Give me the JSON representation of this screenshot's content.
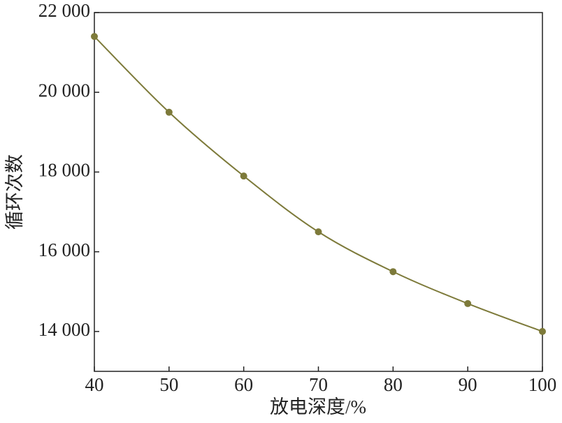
{
  "chart_data": {
    "type": "line",
    "x_label": "放电深度/%",
    "y_label": "循环次数",
    "x": [
      40,
      50,
      60,
      70,
      80,
      90,
      100
    ],
    "series": [
      {
        "color": "#7d7a3a",
        "values": [
          21400,
          19500,
          17900,
          16500,
          15500,
          14700,
          14000
        ]
      }
    ],
    "xlim": [
      40,
      100
    ],
    "xticks": [
      40,
      50,
      60,
      70,
      80,
      90,
      100
    ],
    "ylim": [
      13000,
      22000
    ],
    "yticks": [
      {
        "value": 14000,
        "label": "14 000"
      },
      {
        "value": 16000,
        "label": "16 000"
      },
      {
        "value": 18000,
        "label": "18 000"
      },
      {
        "value": 20000,
        "label": "20 000"
      },
      {
        "value": 22000,
        "label": "22 000"
      }
    ],
    "smooth": true,
    "markers": true
  }
}
